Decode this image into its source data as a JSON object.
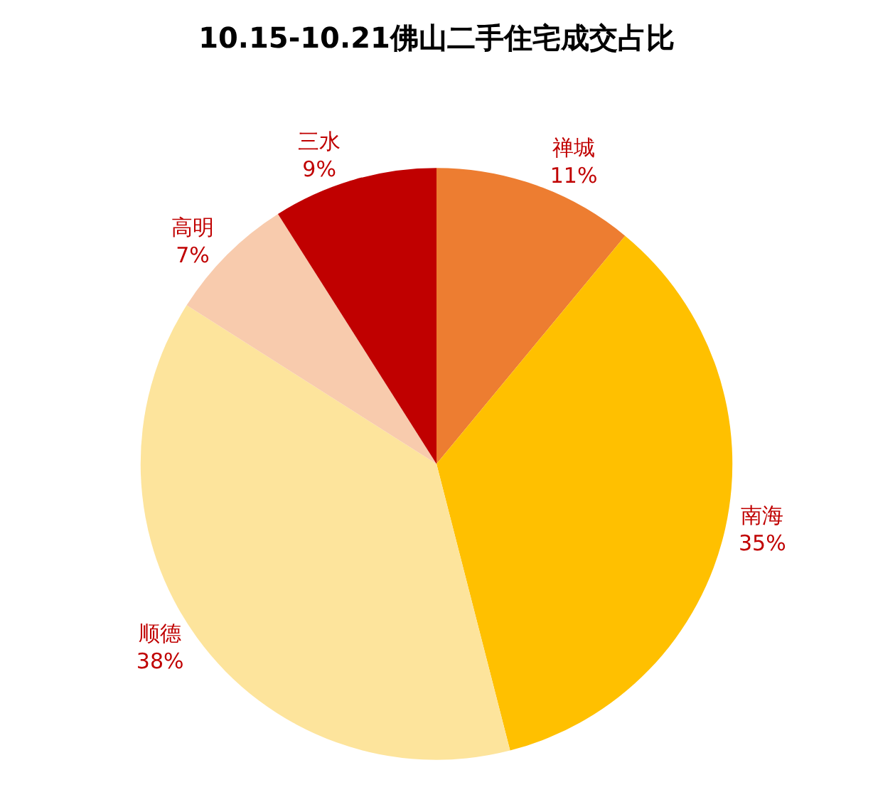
{
  "chart_data": {
    "type": "pie",
    "title": "10.15-10.21佛山二手住宅成交占比",
    "categories": [
      "禅城",
      "南海",
      "顺德",
      "高明",
      "三水"
    ],
    "values": [
      11,
      35,
      38,
      7,
      9
    ],
    "value_labels": [
      "11%",
      "35%",
      "38%",
      "7%",
      "9%"
    ],
    "colors": [
      "#ed7d31",
      "#ffc000",
      "#fde49c",
      "#f8cbad",
      "#c00000"
    ],
    "legend": false
  }
}
